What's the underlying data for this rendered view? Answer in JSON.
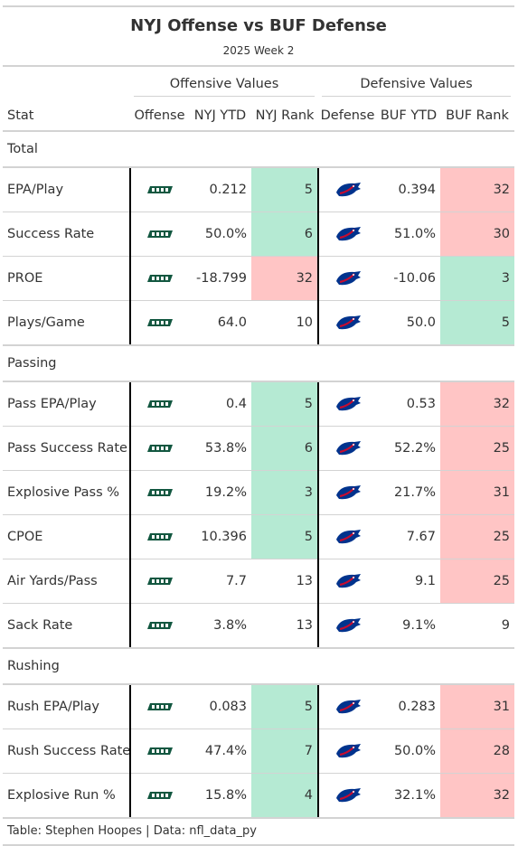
{
  "title": "NYJ Offense vs BUF Defense",
  "subtitle": "2025 Week 2",
  "spanners": {
    "offense": "Offensive Values",
    "defense": "Defensive Values"
  },
  "columns": [
    "Stat",
    "Offense",
    "NYJ YTD",
    "NYJ Rank",
    "Defense",
    "BUF YTD",
    "BUF Rank"
  ],
  "logos": {
    "offense": "jets-logo",
    "defense": "bills-logo"
  },
  "colors": {
    "good": "#b5ead3",
    "bad": "#ffc5c5",
    "jets_green": "#125740",
    "bills_blue": "#00338D",
    "bills_red": "#C60C30"
  },
  "groups": [
    {
      "label": "Total",
      "rows": [
        {
          "stat": "EPA/Play",
          "nyj_ytd": "0.212",
          "nyj_rank": "5",
          "nyj_color": "good",
          "buf_ytd": "0.394",
          "buf_rank": "32",
          "buf_color": "bad"
        },
        {
          "stat": "Success Rate",
          "nyj_ytd": "50.0%",
          "nyj_rank": "6",
          "nyj_color": "good",
          "buf_ytd": "51.0%",
          "buf_rank": "30",
          "buf_color": "bad"
        },
        {
          "stat": "PROE",
          "nyj_ytd": "-18.799",
          "nyj_rank": "32",
          "nyj_color": "bad",
          "buf_ytd": "-10.06",
          "buf_rank": "3",
          "buf_color": "good"
        },
        {
          "stat": "Plays/Game",
          "nyj_ytd": "64.0",
          "nyj_rank": "10",
          "nyj_color": "",
          "buf_ytd": "50.0",
          "buf_rank": "5",
          "buf_color": "good"
        }
      ]
    },
    {
      "label": "Passing",
      "rows": [
        {
          "stat": "Pass EPA/Play",
          "nyj_ytd": "0.4",
          "nyj_rank": "5",
          "nyj_color": "good",
          "buf_ytd": "0.53",
          "buf_rank": "32",
          "buf_color": "bad"
        },
        {
          "stat": "Pass Success Rate",
          "nyj_ytd": "53.8%",
          "nyj_rank": "6",
          "nyj_color": "good",
          "buf_ytd": "52.2%",
          "buf_rank": "25",
          "buf_color": "bad"
        },
        {
          "stat": "Explosive Pass %",
          "nyj_ytd": "19.2%",
          "nyj_rank": "3",
          "nyj_color": "good",
          "buf_ytd": "21.7%",
          "buf_rank": "31",
          "buf_color": "bad"
        },
        {
          "stat": "CPOE",
          "nyj_ytd": "10.396",
          "nyj_rank": "5",
          "nyj_color": "good",
          "buf_ytd": "7.67",
          "buf_rank": "25",
          "buf_color": "bad"
        },
        {
          "stat": "Air Yards/Pass",
          "nyj_ytd": "7.7",
          "nyj_rank": "13",
          "nyj_color": "",
          "buf_ytd": "9.1",
          "buf_rank": "25",
          "buf_color": "bad"
        },
        {
          "stat": "Sack Rate",
          "nyj_ytd": "3.8%",
          "nyj_rank": "13",
          "nyj_color": "",
          "buf_ytd": "9.1%",
          "buf_rank": "9",
          "buf_color": ""
        }
      ]
    },
    {
      "label": "Rushing",
      "rows": [
        {
          "stat": "Rush EPA/Play",
          "nyj_ytd": "0.083",
          "nyj_rank": "5",
          "nyj_color": "good",
          "buf_ytd": "0.283",
          "buf_rank": "31",
          "buf_color": "bad"
        },
        {
          "stat": "Rush Success Rate",
          "nyj_ytd": "47.4%",
          "nyj_rank": "7",
          "nyj_color": "good",
          "buf_ytd": "50.0%",
          "buf_rank": "28",
          "buf_color": "bad"
        },
        {
          "stat": "Explosive Run %",
          "nyj_ytd": "15.8%",
          "nyj_rank": "4",
          "nyj_color": "good",
          "buf_ytd": "32.1%",
          "buf_rank": "32",
          "buf_color": "bad"
        }
      ]
    }
  ],
  "footer": "Table: Stephen Hoopes | Data: nfl_data_py"
}
